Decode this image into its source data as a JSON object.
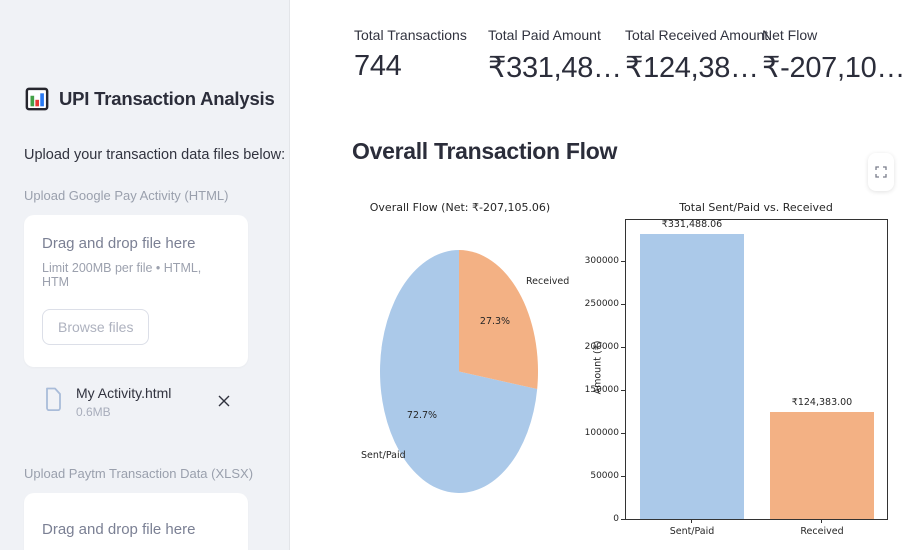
{
  "sidebar": {
    "title": "UPI Transaction Analysis",
    "title_icon": "bar-chart-emoji",
    "intro": "Upload your transaction data files below:",
    "uploaders": [
      {
        "label": "Upload Google Pay Activity (HTML)",
        "dropzone_title": "Drag and drop file here",
        "dropzone_limit": "Limit 200MB per file • HTML, HTM",
        "browse_label": "Browse files",
        "uploaded_file": {
          "name": "My Activity.html",
          "size": "0.6MB"
        }
      },
      {
        "label": "Upload Paytm Transaction Data (XLSX)",
        "dropzone_title": "Drag and drop file here"
      }
    ]
  },
  "metrics": [
    {
      "label": "Total Transactions",
      "value": "744"
    },
    {
      "label": "Total Paid Amount",
      "value": "₹331,48…"
    },
    {
      "label": "Total Received Amount",
      "value": "₹124,38…"
    },
    {
      "label": "Net Flow",
      "value": "₹-207,10…"
    }
  ],
  "main": {
    "section_title": "Overall Transaction Flow"
  },
  "icons": {
    "title": "bar-chart-emoji",
    "file": "document-icon",
    "remove": "close-icon",
    "fullscreen": "fullscreen-icon"
  },
  "colors": {
    "blue": "#abc9e9",
    "orange": "#f3b184",
    "sidebar_bg": "#f0f2f6",
    "text": "#31333f"
  },
  "chart_data": [
    {
      "type": "pie",
      "title": "Overall Flow (Net: ₹-207,105.06)",
      "labels": [
        "Sent/Paid",
        "Received"
      ],
      "values": [
        72.7,
        27.3
      ],
      "pct_labels": [
        "72.7%",
        "27.3%"
      ],
      "colors": [
        "#abc9e9",
        "#f3b184"
      ],
      "start_angle": 90,
      "counterclock": true,
      "legend_position": "none"
    },
    {
      "type": "bar",
      "title": "Total Sent/Paid vs. Received",
      "categories": [
        "Sent/Paid",
        "Received"
      ],
      "values": [
        331488.06,
        124383.0
      ],
      "bar_labels": [
        "₹331,488.06",
        "₹124,383.00"
      ],
      "colors": [
        "#abc9e9",
        "#f3b184"
      ],
      "xlabel": "",
      "ylabel": "Amount (₹)",
      "ylim": [
        0,
        348000
      ],
      "yticks": [
        0,
        50000,
        100000,
        150000,
        200000,
        250000,
        300000
      ],
      "grid": false
    }
  ]
}
